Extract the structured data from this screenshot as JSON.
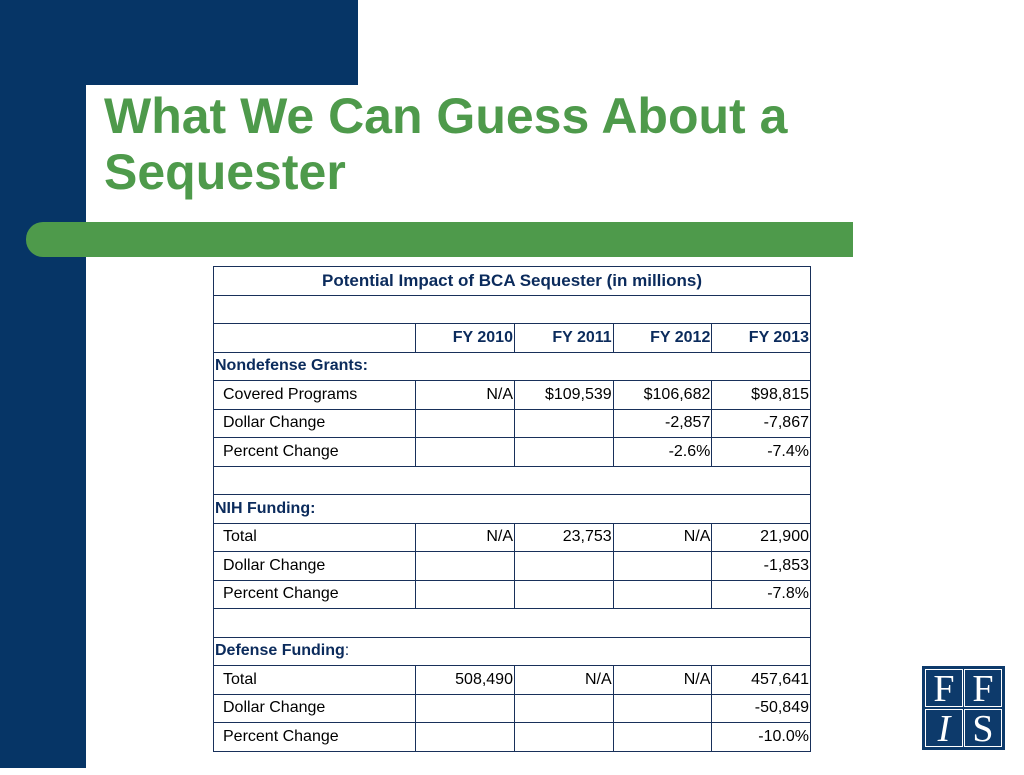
{
  "slide": {
    "title": "What We Can Guess About a Sequester"
  },
  "table": {
    "caption": "Potential Impact of BCA Sequester (in millions)",
    "columns": [
      "FY 2010",
      "FY 2011",
      "FY 2012",
      "FY 2013"
    ],
    "sections": [
      {
        "heading": "Nondefense Grants:",
        "heading_suffix": "",
        "rows": [
          {
            "label": "Covered Programs",
            "values": [
              "N/A",
              "$109,539",
              "$106,682",
              "$98,815"
            ]
          },
          {
            "label": "Dollar Change",
            "values": [
              "",
              "",
              "-2,857",
              "-7,867"
            ]
          },
          {
            "label": "Percent Change",
            "values": [
              "",
              "",
              "-2.6%",
              "-7.4%"
            ]
          }
        ]
      },
      {
        "heading": "NIH Funding:",
        "heading_suffix": "",
        "rows": [
          {
            "label": "Total",
            "values": [
              "N/A",
              "23,753",
              "N/A",
              "21,900"
            ]
          },
          {
            "label": "Dollar Change",
            "values": [
              "",
              "",
              "",
              "-1,853"
            ]
          },
          {
            "label": "Percent Change",
            "values": [
              "",
              "",
              "",
              "-7.8%"
            ]
          }
        ]
      },
      {
        "heading": "Defense Funding",
        "heading_suffix": ":",
        "rows": [
          {
            "label": "Total",
            "values": [
              "508,490",
              "N/A",
              "N/A",
              "457,641"
            ]
          },
          {
            "label": "Dollar Change",
            "values": [
              "",
              "",
              "",
              "-50,849"
            ]
          },
          {
            "label": "Percent Change",
            "values": [
              "",
              "",
              "",
              "-10.0%"
            ]
          }
        ]
      }
    ]
  },
  "logo": {
    "letters": [
      "F",
      "F",
      "I",
      "S"
    ]
  },
  "colors": {
    "navy": "#063566",
    "green": "#4e9a4b",
    "table_header_text": "#0b2b5c"
  }
}
